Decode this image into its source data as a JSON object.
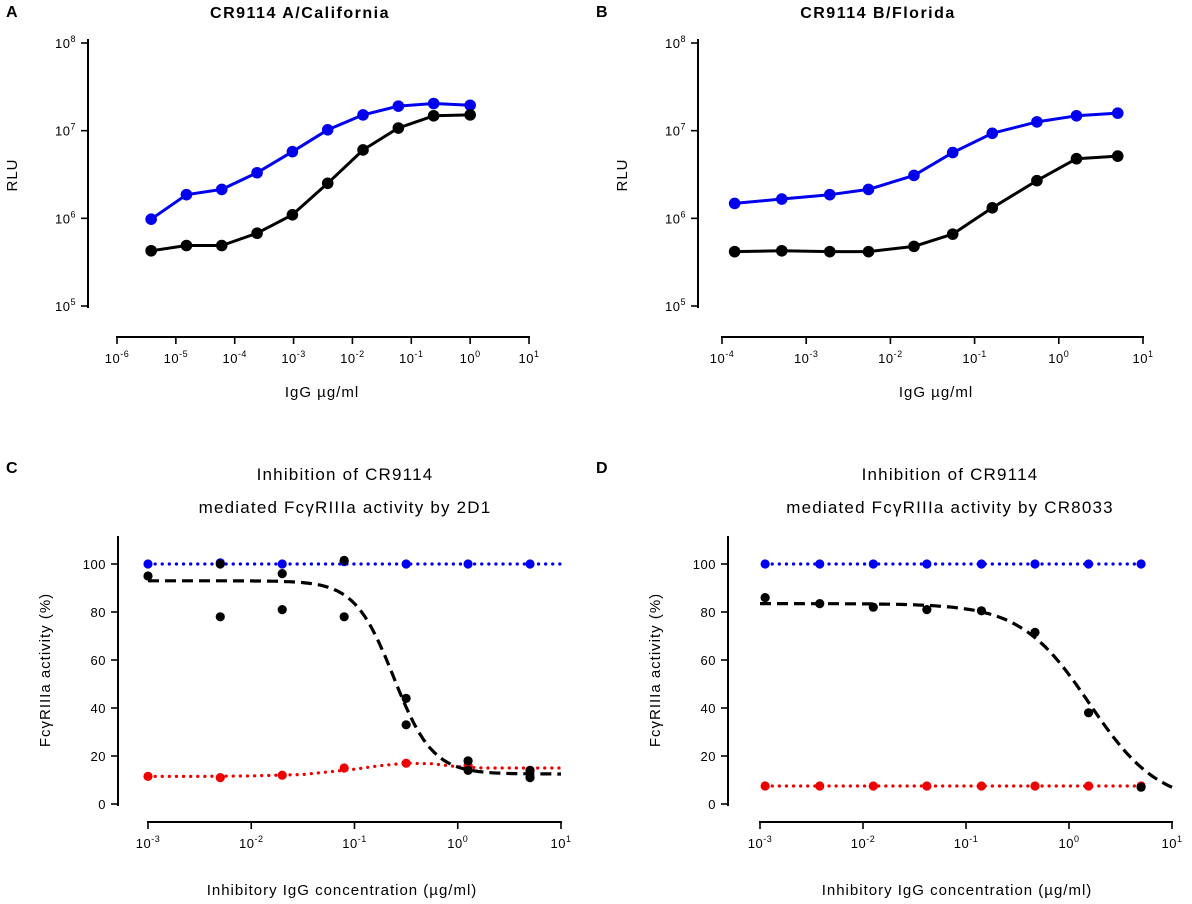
{
  "chart_data": [
    {
      "panel": "A",
      "type": "line",
      "title": "CR9114 A/California",
      "xlabel": "IgG µg/ml",
      "ylabel": "RLU",
      "xscale": "log",
      "yscale": "log",
      "xlim": [
        -6,
        1
      ],
      "ylim": [
        5,
        8
      ],
      "xtick_labels": [
        "10-6",
        "10-5",
        "10-4",
        "10-3",
        "10-2",
        "10-1",
        "100",
        "101"
      ],
      "ytick_labels": [
        "105",
        "106",
        "107",
        "108"
      ],
      "series": [
        {
          "name": "blue",
          "color": "#0000ee",
          "style": "solid",
          "x": [
            -5.42,
            -4.82,
            -4.22,
            -3.62,
            -3.02,
            -2.42,
            -1.82,
            -1.22,
            -0.62,
            0.0
          ],
          "y": [
            5.99,
            6.27,
            6.33,
            6.52,
            6.76,
            7.01,
            7.18,
            7.28,
            7.31,
            7.29
          ]
        },
        {
          "name": "black",
          "color": "#000000",
          "style": "solid",
          "x": [
            -5.42,
            -4.82,
            -4.22,
            -3.62,
            -3.02,
            -2.42,
            -1.82,
            -1.22,
            -0.62,
            0.0
          ],
          "y": [
            5.63,
            5.69,
            5.69,
            5.83,
            6.04,
            6.4,
            6.78,
            7.03,
            7.17,
            7.18
          ]
        }
      ]
    },
    {
      "panel": "B",
      "type": "line",
      "title": "CR9114 B/Florida",
      "xlabel": "IgG µg/ml",
      "ylabel": "RLU",
      "xscale": "log",
      "yscale": "log",
      "xlim": [
        -4,
        1
      ],
      "ylim": [
        5,
        8
      ],
      "xtick_labels": [
        "10-4",
        "10-3",
        "10-2",
        "10-1",
        "100",
        "101"
      ],
      "ytick_labels": [
        "105",
        "106",
        "107",
        "108"
      ],
      "series": [
        {
          "name": "blue",
          "color": "#0000ee",
          "style": "solid",
          "x": [
            -3.85,
            -3.29,
            -2.72,
            -2.26,
            -1.72,
            -1.26,
            -0.79,
            -0.26,
            0.21,
            0.7
          ],
          "y": [
            6.17,
            6.22,
            6.27,
            6.33,
            6.49,
            6.75,
            6.97,
            7.1,
            7.17,
            7.2
          ]
        },
        {
          "name": "black",
          "color": "#000000",
          "style": "solid",
          "x": [
            -3.85,
            -3.29,
            -2.72,
            -2.26,
            -1.72,
            -1.26,
            -0.79,
            -0.26,
            0.21,
            0.7
          ],
          "y": [
            5.62,
            5.63,
            5.62,
            5.62,
            5.68,
            5.82,
            6.12,
            6.43,
            6.68,
            6.71
          ]
        }
      ]
    },
    {
      "panel": "C",
      "type": "scatter",
      "title_lines": [
        "Inhibition of CR9114",
        "mediated FcγRIIIa activity by 2D1"
      ],
      "xlabel": "Inhibitory IgG concentration (µg/ml)",
      "ylabel": "FcγRIIIa activity (%)",
      "xscale": "log",
      "xlim": [
        -3,
        1
      ],
      "ylim": [
        0,
        110
      ],
      "xtick_labels": [
        "10-3",
        "10-2",
        "10-1",
        "100",
        "101"
      ],
      "yticks": [
        0,
        20,
        40,
        60,
        80,
        100
      ],
      "series": [
        {
          "name": "blue",
          "color": "#0000ee",
          "style": "dotted",
          "x": [
            -3.0,
            -2.3,
            -1.7,
            -1.1,
            -0.5,
            0.1,
            0.7
          ],
          "y": [
            100,
            100.5,
            100,
            101,
            100,
            100,
            100
          ],
          "fit": {
            "x": [
              -3,
              1
            ],
            "y": [
              100,
              100
            ]
          }
        },
        {
          "name": "red",
          "color": "#ee0000",
          "style": "dotted",
          "x": [
            -3.0,
            -2.3,
            -1.7,
            -1.1,
            -0.5,
            0.1,
            0.7
          ],
          "y": [
            11.5,
            11,
            12,
            15,
            17,
            16,
            14
          ],
          "fit": {
            "x": [
              -3,
              -2.5,
              -2,
              -1.5,
              -1,
              -0.75,
              -0.5,
              -0.25,
              0,
              0.25,
              0.5,
              0.75,
              1
            ],
            "y": [
              11.5,
              11.5,
              11.7,
              12.3,
              14.5,
              16,
              17,
              16.8,
              15.5,
              15,
              15,
              15,
              15
            ]
          }
        },
        {
          "name": "black",
          "color": "#000000",
          "style": "dashed",
          "x": [
            -3.0,
            -2.3,
            -2.3,
            -1.7,
            -1.7,
            -1.1,
            -1.1,
            -0.5,
            -0.5,
            0.1,
            0.1,
            0.7,
            0.7
          ],
          "y": [
            95,
            100,
            78,
            96,
            81,
            101.5,
            78,
            44,
            33,
            18,
            14,
            14,
            11
          ],
          "fit": {
            "model": "4PL",
            "top": 93,
            "bottom": 12.5,
            "logIC50": -0.62,
            "hill": 2.3
          }
        }
      ]
    },
    {
      "panel": "D",
      "type": "scatter",
      "title_lines": [
        "Inhibition of CR9114",
        "mediated FcγRIIIa activity by CR8033"
      ],
      "xlabel": "Inhibitory IgG concentration (µg/ml)",
      "ylabel": "FcγRIIIa activity (%)",
      "xscale": "log",
      "xlim": [
        -3,
        1
      ],
      "ylim": [
        0,
        110
      ],
      "xtick_labels": [
        "10-3",
        "10-2",
        "10-1",
        "100",
        "101"
      ],
      "yticks": [
        0,
        20,
        40,
        60,
        80,
        100
      ],
      "series": [
        {
          "name": "blue",
          "color": "#0000ee",
          "style": "dotted",
          "x": [
            -2.95,
            -2.42,
            -1.9,
            -1.38,
            -0.85,
            -0.33,
            0.19,
            0.7
          ],
          "y": [
            100,
            100,
            100,
            100,
            100,
            100,
            100,
            100
          ],
          "fit": {
            "x": [
              -2.95,
              0.7
            ],
            "y": [
              100,
              100
            ]
          }
        },
        {
          "name": "red",
          "color": "#ee0000",
          "style": "dotted",
          "x": [
            -2.95,
            -2.42,
            -1.9,
            -1.38,
            -0.85,
            -0.33,
            0.19,
            0.7
          ],
          "y": [
            7.5,
            7.5,
            7.5,
            7.5,
            7.5,
            7.5,
            7.5,
            7.5
          ],
          "fit": {
            "x": [
              -2.95,
              0.7
            ],
            "y": [
              7.5,
              7.5
            ]
          }
        },
        {
          "name": "black",
          "color": "#000000",
          "style": "dashed",
          "x": [
            -2.95,
            -2.42,
            -1.9,
            -1.38,
            -0.85,
            -0.33,
            0.19,
            0.7
          ],
          "y": [
            86,
            83.5,
            82,
            81,
            80.5,
            71.5,
            38,
            7
          ],
          "fit": {
            "model": "4PL",
            "top": 83.5,
            "bottom": 0,
            "logIC50": 0.2,
            "hill": 1.3
          }
        }
      ]
    }
  ]
}
